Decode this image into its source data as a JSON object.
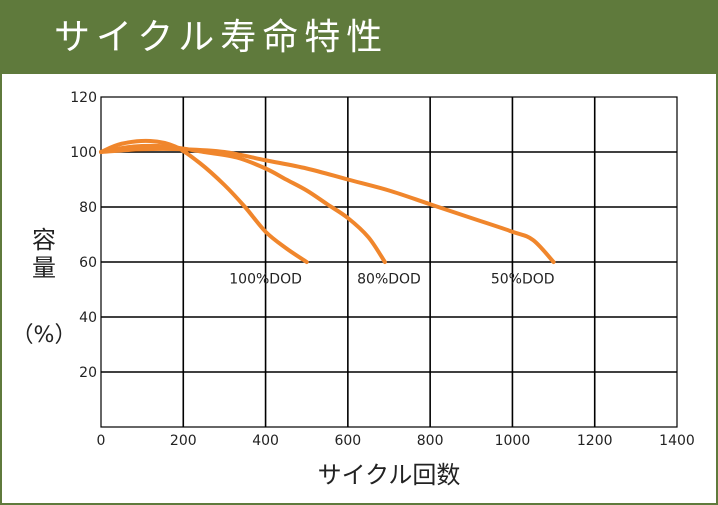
{
  "header": {
    "title": "サイクル寿命特性"
  },
  "colors": {
    "header_bg": "#5f7a3c",
    "series": "#f0862c",
    "grid": "#000000"
  },
  "chart_data": {
    "type": "line",
    "xlabel": "サイクル回数",
    "ylabel_main": "容量",
    "ylabel_unit": "（%）",
    "xlim": [
      0,
      1400
    ],
    "ylim": [
      0,
      120
    ],
    "x_ticks": [
      0,
      200,
      400,
      600,
      800,
      1000,
      1200,
      1400
    ],
    "y_ticks": [
      20,
      40,
      60,
      80,
      100,
      120
    ],
    "grid": true,
    "series": [
      {
        "name": "100%DOD",
        "points": [
          [
            0,
            100
          ],
          [
            50,
            103
          ],
          [
            120,
            104
          ],
          [
            180,
            102
          ],
          [
            240,
            96
          ],
          [
            300,
            88
          ],
          [
            350,
            80
          ],
          [
            400,
            71
          ],
          [
            450,
            65
          ],
          [
            500,
            60
          ]
        ]
      },
      {
        "name": "80%DOD",
        "points": [
          [
            0,
            100
          ],
          [
            80,
            102
          ],
          [
            160,
            102
          ],
          [
            250,
            100
          ],
          [
            330,
            98
          ],
          [
            400,
            94
          ],
          [
            450,
            90
          ],
          [
            500,
            86
          ],
          [
            550,
            81
          ],
          [
            600,
            76
          ],
          [
            650,
            69
          ],
          [
            690,
            60
          ]
        ]
      },
      {
        "name": "50%DOD",
        "points": [
          [
            0,
            100
          ],
          [
            100,
            101
          ],
          [
            200,
            101
          ],
          [
            300,
            100
          ],
          [
            400,
            97
          ],
          [
            500,
            94
          ],
          [
            600,
            90
          ],
          [
            700,
            86
          ],
          [
            800,
            81
          ],
          [
            900,
            76
          ],
          [
            1000,
            71
          ],
          [
            1050,
            68
          ],
          [
            1100,
            60
          ]
        ]
      }
    ],
    "labels": [
      {
        "text": "100%DOD",
        "x": 400,
        "y": 54
      },
      {
        "text": "80%DOD",
        "x": 700,
        "y": 54
      },
      {
        "text": "50%DOD",
        "x": 1025,
        "y": 54
      }
    ]
  }
}
